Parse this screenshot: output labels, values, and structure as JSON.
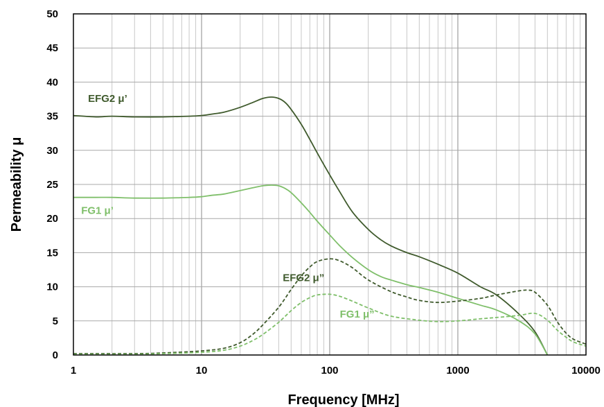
{
  "chart_data": {
    "type": "line",
    "xlabel": "Frequency [MHz]",
    "ylabel": "Permeability μ",
    "xscale": "log",
    "xlim": [
      1,
      10000
    ],
    "ylim": [
      0,
      50
    ],
    "x_ticks": [
      1,
      10,
      100,
      1000,
      10000
    ],
    "x_tick_labels": [
      "1",
      "10",
      "100",
      "1000",
      "10000"
    ],
    "y_ticks": [
      0,
      5,
      10,
      15,
      20,
      25,
      30,
      35,
      40,
      45,
      50
    ],
    "y_tick_labels": [
      "0",
      "5",
      "10",
      "15",
      "20",
      "25",
      "30",
      "35",
      "40",
      "45",
      "50"
    ],
    "grid": true,
    "legend": "none",
    "series": [
      {
        "name": "EFG2 μ’",
        "color": "#3f5a2c",
        "style": "solid",
        "x": [
          1,
          1.5,
          2,
          3,
          5,
          8,
          10,
          12,
          15,
          20,
          25,
          30,
          35,
          40,
          45,
          50,
          60,
          70,
          80,
          100,
          120,
          150,
          200,
          250,
          300,
          400,
          500,
          700,
          1000,
          1500,
          2000,
          3000,
          4000,
          5000
        ],
        "y": [
          35.1,
          34.9,
          35.0,
          34.9,
          34.9,
          35.0,
          35.1,
          35.3,
          35.6,
          36.3,
          37.0,
          37.6,
          37.8,
          37.6,
          37.0,
          36.0,
          33.8,
          31.6,
          29.6,
          26.4,
          23.9,
          21.0,
          18.4,
          16.9,
          16.0,
          15.0,
          14.4,
          13.3,
          12.0,
          10.0,
          8.8,
          6.0,
          3.4,
          0.0
        ]
      },
      {
        "name": "FG1 μ’",
        "color": "#7fbf6a",
        "style": "solid",
        "x": [
          1,
          1.5,
          2,
          3,
          5,
          8,
          10,
          12,
          15,
          20,
          25,
          30,
          35,
          40,
          45,
          50,
          60,
          70,
          80,
          100,
          120,
          150,
          200,
          250,
          300,
          400,
          500,
          700,
          1000,
          1500,
          2000,
          3000,
          4000,
          5000
        ],
        "y": [
          23.1,
          23.1,
          23.1,
          23.0,
          23.0,
          23.1,
          23.2,
          23.4,
          23.6,
          24.1,
          24.5,
          24.8,
          24.9,
          24.8,
          24.4,
          23.8,
          22.3,
          20.9,
          19.6,
          17.6,
          16.0,
          14.3,
          12.5,
          11.5,
          11.0,
          10.3,
          9.9,
          9.2,
          8.3,
          7.3,
          6.6,
          5.0,
          3.1,
          0.0
        ]
      },
      {
        "name": "EFG2 μ”",
        "color": "#3f5a2c",
        "style": "dashed",
        "x": [
          1,
          3,
          5,
          10,
          15,
          20,
          25,
          30,
          40,
          50,
          60,
          70,
          80,
          100,
          120,
          150,
          200,
          300,
          400,
          500,
          700,
          1000,
          1500,
          2000,
          3000,
          3500,
          4000,
          5000,
          6000,
          7000,
          8000,
          10000
        ],
        "y": [
          0.2,
          0.2,
          0.3,
          0.6,
          1.0,
          1.8,
          3.0,
          4.4,
          7.0,
          9.6,
          11.6,
          12.9,
          13.7,
          14.1,
          13.8,
          12.8,
          11.0,
          9.3,
          8.5,
          8.0,
          7.7,
          7.9,
          8.3,
          8.8,
          9.4,
          9.5,
          9.2,
          7.3,
          4.8,
          3.2,
          2.3,
          1.6
        ]
      },
      {
        "name": "FG1 μ”",
        "color": "#7fbf6a",
        "style": "dashed",
        "x": [
          1,
          3,
          5,
          10,
          15,
          20,
          25,
          30,
          40,
          50,
          60,
          70,
          80,
          100,
          120,
          150,
          200,
          300,
          500,
          700,
          1000,
          1500,
          2000,
          3000,
          4000,
          5000,
          6000,
          7000,
          8000,
          10000
        ],
        "y": [
          0.1,
          0.1,
          0.2,
          0.4,
          0.7,
          1.3,
          2.1,
          3.0,
          4.8,
          6.5,
          7.7,
          8.4,
          8.8,
          8.9,
          8.6,
          7.9,
          6.9,
          5.7,
          5.1,
          4.9,
          5.0,
          5.3,
          5.5,
          5.8,
          6.1,
          5.1,
          3.6,
          2.6,
          1.9,
          1.3
        ]
      }
    ],
    "annotations": [
      {
        "text": "EFG2 μ’",
        "color": "#3f5a2c",
        "x": 1.3,
        "y": 37.1
      },
      {
        "text": "FG1 μ’",
        "color": "#7fbf6a",
        "x": 1.15,
        "y": 20.7
      },
      {
        "text": "EFG2 μ”",
        "color": "#3f5a2c",
        "x": 43,
        "y": 10.8
      },
      {
        "text": "FG1 μ”",
        "color": "#7fbf6a",
        "x": 120,
        "y": 5.5
      }
    ]
  }
}
